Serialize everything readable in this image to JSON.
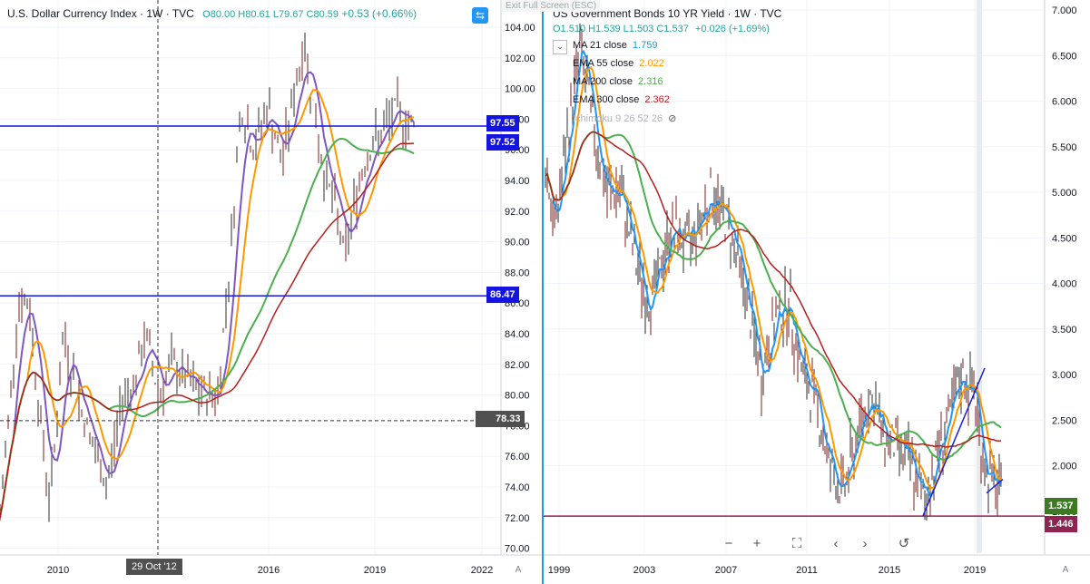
{
  "left_chart": {
    "symbol": "U.S. Dollar Currency Index · 1W · TVC",
    "ohlc": "O80.00 H80.61 L79.67 C80.59",
    "change": "+0.53 (+0.66%)",
    "price_axis": [
      "104.00",
      "102.00",
      "100.00",
      "98.00",
      "96.00",
      "94.00",
      "92.00",
      "90.00",
      "88.00",
      "86.00",
      "84.00",
      "82.00",
      "80.00",
      "78.00",
      "76.00",
      "74.00",
      "72.00",
      "70.00"
    ],
    "time_axis": [
      "2010",
      "2016",
      "2019",
      "2022"
    ],
    "tags": {
      "line1": "97.55",
      "price": "97.52",
      "line2": "86.47",
      "crosshair": "78.33"
    },
    "crosshair_date": "29 Oct '12",
    "autoscale_label": "A"
  },
  "right_chart": {
    "symbol": "US Government Bonds 10 YR Yield · 1W · TVC",
    "ohlc": "O1.510 H1.539 L1.503 C1.537",
    "change": "+0.026 (+1.69%)",
    "indicators": [
      {
        "label": "MA 21 close",
        "value": "1.759",
        "color": "#2196f3"
      },
      {
        "label": "EMA 55 close",
        "value": "2.022",
        "color": "#ff9800"
      },
      {
        "label": "MA 200 close",
        "value": "2.316",
        "color": "#4caf50"
      },
      {
        "label": "EMA 300 close",
        "value": "2.362",
        "color": "#b71c1c"
      },
      {
        "label": "Ichimoku 9 26 52 26",
        "value": "",
        "color": "#9e9e9e"
      }
    ],
    "price_axis": [
      "7.000",
      "6.500",
      "6.000",
      "5.500",
      "5.000",
      "4.500",
      "4.000",
      "3.500",
      "3.000",
      "2.500",
      "2.000",
      "1.500"
    ],
    "time_axis": [
      "1999",
      "2003",
      "2007",
      "2011",
      "2015",
      "2019"
    ],
    "tags": {
      "price": "1.537",
      "line": "1.446"
    },
    "exit_fullscreen": "Exit Full Screen (ESC)",
    "toolbar": [
      "−",
      "+",
      "⛶",
      "‹",
      "›",
      "↺"
    ],
    "autoscale_label": "A"
  }
}
